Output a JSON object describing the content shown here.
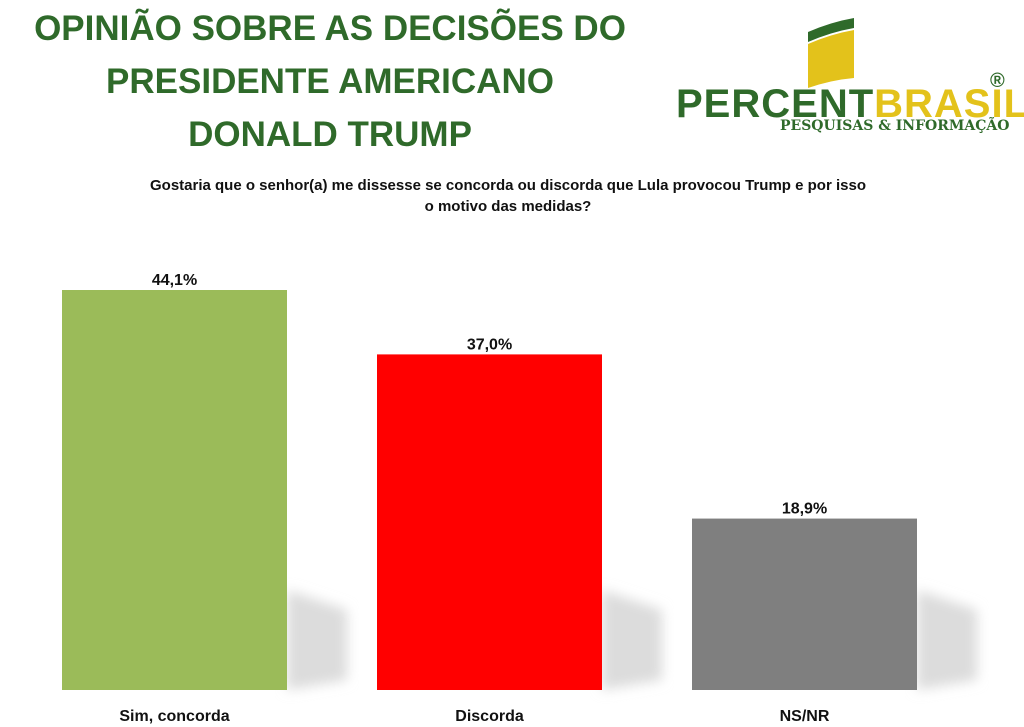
{
  "title": {
    "line1": "OPINIÃO SOBRE AS DECISÕES DO",
    "line2": "PRESIDENTE AMERICANO",
    "line3": "DONALD TRUMP"
  },
  "logo": {
    "word_part1": "PERCENT",
    "word_part2": "BRASIL",
    "registered": "®",
    "tagline": "PESQUISAS & INFORMAÇÃO"
  },
  "question": {
    "line1": "Gostaria que o senhor(a) me dissesse se concorda ou discorda que Lula provocou Trump e por isso",
    "line2": "o motivo das medidas?"
  },
  "colors": {
    "title_green": "#2f6a2a",
    "logo_yellow": "#e3c21b"
  },
  "chart_data": {
    "type": "bar",
    "categories": [
      "Sim, concorda",
      "Discorda",
      "NS/NR"
    ],
    "values": [
      44.1,
      37.0,
      18.9
    ],
    "value_labels": [
      "44,1%",
      "37,0%",
      "18,9%"
    ],
    "colors": [
      "#9bbb59",
      "#ff0000",
      "#7f7f7f"
    ],
    "ylim": [
      0,
      50
    ],
    "grid": false,
    "legend": false
  }
}
